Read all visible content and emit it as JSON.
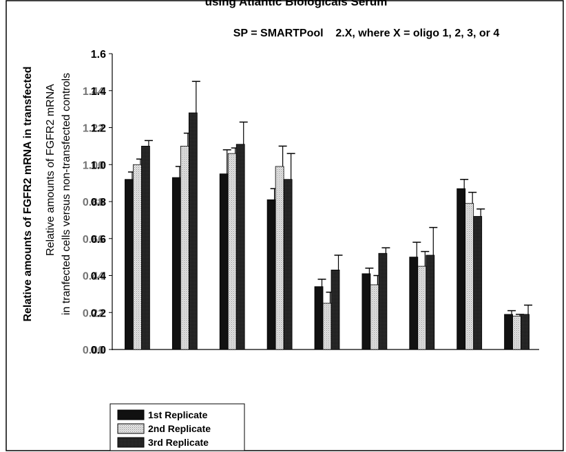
{
  "chart_data": {
    "type": "bar",
    "title": "using Atlantic Biologicals Serum",
    "subtitle": "SP = SMARTPool    2.X, where X = oligo 1, 2, 3, or 4",
    "ylabel_outer": "Relative amounts of FGFR2 mRNA in transfected",
    "ylabel_inner_1": "Relative amounts of FGFR2 mRNA",
    "ylabel_inner_2": "in tranfected cells versus non-transfected controls",
    "yticks": [
      "0.0",
      "0.2",
      "0.4",
      "0.6",
      "0.8",
      "1.0",
      "1.2",
      "1.4",
      "1.6"
    ],
    "yticks_overlay": [
      "0.00",
      "0.22",
      "0.44",
      "0.66",
      "0.88",
      "1.00",
      "1.22",
      "1.44"
    ],
    "ylim": [
      0,
      1.6
    ],
    "categories": [
      "",
      "",
      "",
      "",
      "",
      "",
      "",
      "",
      ""
    ],
    "series": [
      {
        "name": "1st Replicate",
        "values": [
          0.92,
          0.93,
          0.95,
          0.81,
          0.34,
          0.41,
          0.5,
          0.87,
          0.19
        ],
        "errors": [
          0.04,
          0.06,
          0.13,
          0.06,
          0.04,
          0.03,
          0.08,
          0.05,
          0.02
        ]
      },
      {
        "name": "2nd Replicate",
        "values": [
          1.0,
          1.1,
          1.06,
          0.99,
          0.25,
          0.35,
          0.45,
          0.79,
          0.18
        ],
        "errors": [
          0.03,
          0.07,
          0.03,
          0.11,
          0.06,
          0.05,
          0.08,
          0.06,
          0.01
        ]
      },
      {
        "name": "3rd Replicate",
        "values": [
          1.1,
          1.28,
          1.11,
          0.92,
          0.43,
          0.52,
          0.51,
          0.72,
          0.19
        ],
        "errors": [
          0.03,
          0.17,
          0.12,
          0.14,
          0.08,
          0.03,
          0.15,
          0.04,
          0.05
        ]
      }
    ],
    "legend_position": "bottom-left",
    "colors": {
      "s1": "#111111",
      "s2": "#d4d4d4",
      "s3": "#1e1e1e"
    },
    "grid": false
  }
}
